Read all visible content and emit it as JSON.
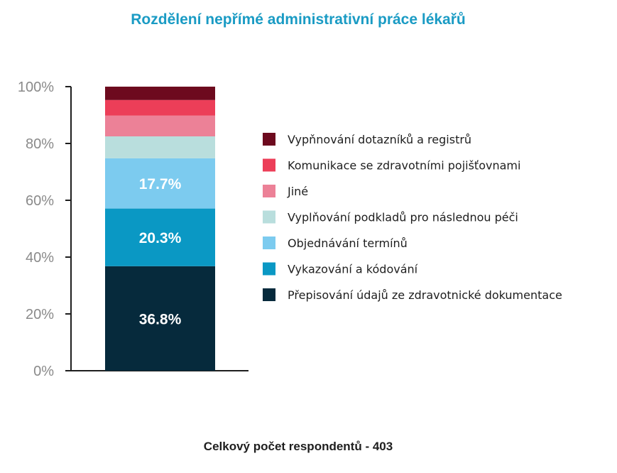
{
  "chart_data": {
    "type": "bar",
    "stacked": true,
    "title": "Rozdělení nepřímé administrativní práce lékařů",
    "ylim": [
      0,
      100
    ],
    "y_ticks": [
      "0%",
      "20%",
      "40%",
      "60%",
      "80%",
      "100%"
    ],
    "grid": false,
    "legend_position": "right",
    "series": [
      {
        "name": "Přepisování údajů ze zdravotnické dokumentace",
        "value": 36.8,
        "label": "36.8%",
        "color": "#062a3c"
      },
      {
        "name": "Vykazování a kódování",
        "value": 20.3,
        "label": "20.3%",
        "color": "#0a98c4"
      },
      {
        "name": "Objednávání termínů",
        "value": 17.7,
        "label": "17.7%",
        "color": "#7ccbef"
      },
      {
        "name": "Vyplňování podkladů pro následnou péči",
        "value": 7.7,
        "label": "",
        "color": "#b9dedd"
      },
      {
        "name": "Jiné",
        "value": 7.3,
        "label": "",
        "color": "#ec8197"
      },
      {
        "name": "Komunikace se zdravotními pojišťovnami",
        "value": 5.5,
        "label": "",
        "color": "#ec3e58"
      },
      {
        "name": "Vypňnování dotazníků a registrů",
        "value": 4.7,
        "label": "",
        "color": "#6d0a1e"
      }
    ]
  },
  "footer": {
    "note": "Celkový počet respondentů - 403"
  }
}
